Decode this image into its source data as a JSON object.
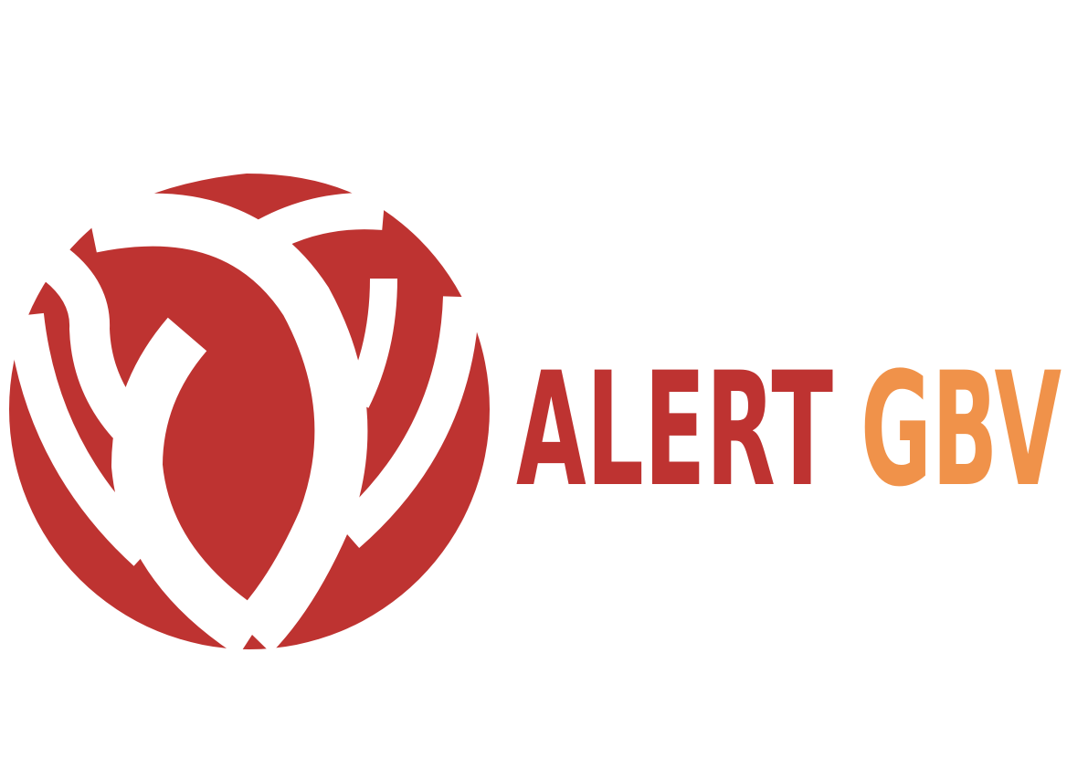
{
  "logo": {
    "word1": "ALERT",
    "word2": "GBV"
  }
}
